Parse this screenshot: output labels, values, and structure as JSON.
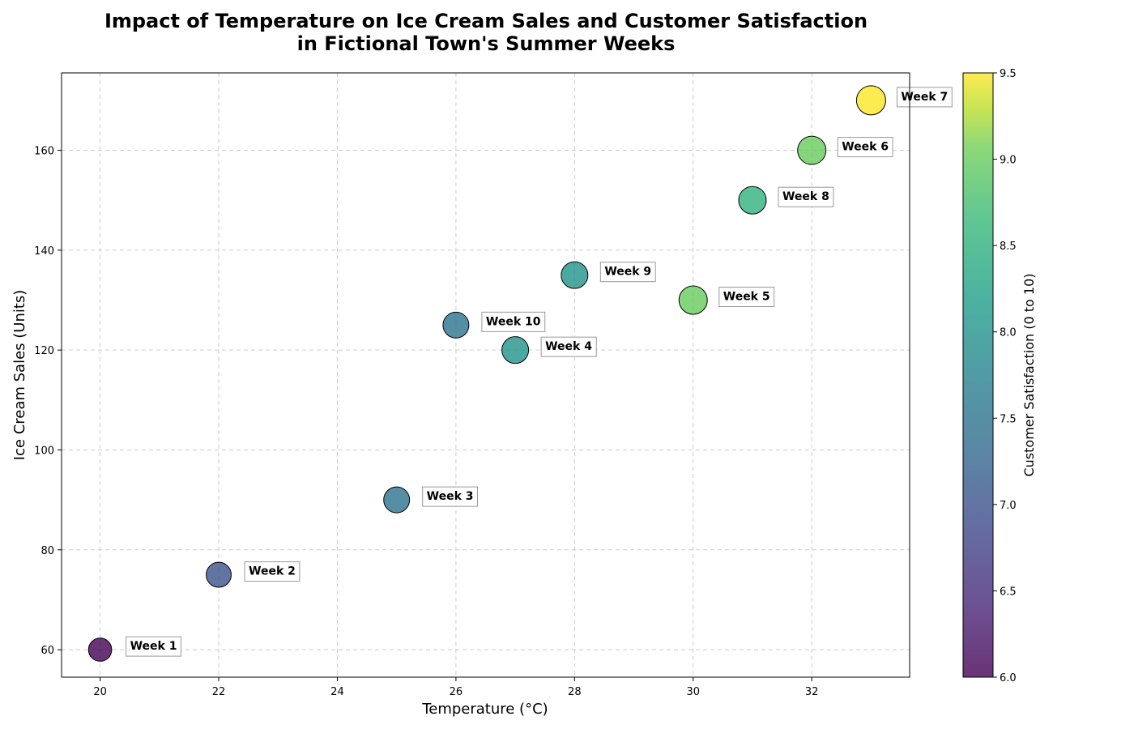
{
  "chart_data": {
    "type": "scatter",
    "title_lines": [
      "Impact of Temperature on Ice Cream Sales and Customer Satisfaction",
      "in Fictional Town's Summer Weeks"
    ],
    "xlabel": "Temperature (°C)",
    "ylabel": "Ice Cream Sales (Units)",
    "colorbar_label": "Customer Satisfaction (0 to 10)",
    "xlim": [
      19.35,
      33.65
    ],
    "ylim": [
      54.5,
      175.5
    ],
    "x_ticks": [
      20,
      22,
      24,
      26,
      28,
      30,
      32
    ],
    "y_ticks": [
      60,
      80,
      100,
      120,
      140,
      160
    ],
    "colorbar_range": [
      6.0,
      9.5
    ],
    "colorbar_ticks": [
      "6.0",
      "6.5",
      "7.0",
      "7.5",
      "8.0",
      "8.5",
      "9.0",
      "9.5"
    ],
    "colormap": "viridis",
    "grid": true,
    "points": [
      {
        "label": "Week 1",
        "temperature": 20,
        "sales": 60,
        "satisfaction": 6.0
      },
      {
        "label": "Week 2",
        "temperature": 22,
        "sales": 75,
        "satisfaction": 7.0
      },
      {
        "label": "Week 3",
        "temperature": 25,
        "sales": 90,
        "satisfaction": 7.5
      },
      {
        "label": "Week 4",
        "temperature": 27,
        "sales": 120,
        "satisfaction": 8.0
      },
      {
        "label": "Week 5",
        "temperature": 30,
        "sales": 130,
        "satisfaction": 9.0
      },
      {
        "label": "Week 6",
        "temperature": 32,
        "sales": 160,
        "satisfaction": 9.0
      },
      {
        "label": "Week 7",
        "temperature": 33,
        "sales": 170,
        "satisfaction": 9.5
      },
      {
        "label": "Week 8",
        "temperature": 31,
        "sales": 150,
        "satisfaction": 8.5
      },
      {
        "label": "Week 9",
        "temperature": 28,
        "sales": 135,
        "satisfaction": 8.0
      },
      {
        "label": "Week 10",
        "temperature": 26,
        "sales": 125,
        "satisfaction": 7.5
      }
    ]
  }
}
